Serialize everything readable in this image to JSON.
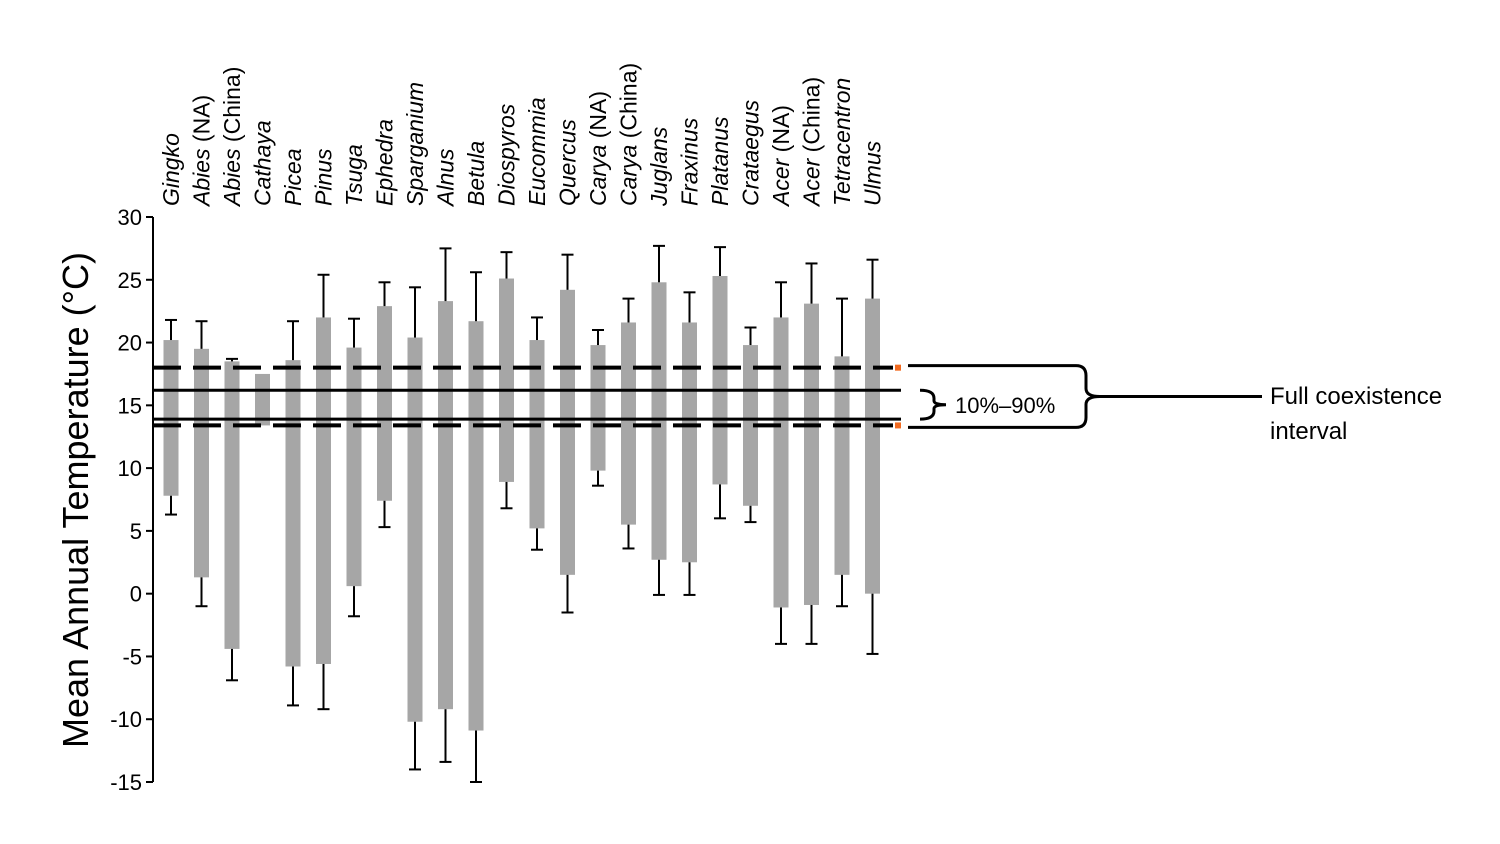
{
  "chart_data": {
    "type": "bar",
    "ylabel": "Mean Annual Temperature (°C)",
    "xlabel": "",
    "ylim": [
      -15,
      30
    ],
    "yticks": [
      30,
      25,
      20,
      15,
      10,
      5,
      0,
      -5,
      -10,
      -15
    ],
    "grid": false,
    "categories": [
      {
        "genus": "Gingko",
        "region": ""
      },
      {
        "genus": "Abies",
        "region": " (NA)"
      },
      {
        "genus": "Abies",
        "region": " (China)"
      },
      {
        "genus": "Cathaya",
        "region": ""
      },
      {
        "genus": "Picea",
        "region": ""
      },
      {
        "genus": "Pinus",
        "region": ""
      },
      {
        "genus": "Tsuga",
        "region": ""
      },
      {
        "genus": "Ephedra",
        "region": ""
      },
      {
        "genus": "Sparganium",
        "region": ""
      },
      {
        "genus": "Alnus",
        "region": ""
      },
      {
        "genus": "Betula",
        "region": ""
      },
      {
        "genus": "Diospyros",
        "region": ""
      },
      {
        "genus": "Eucommia",
        "region": ""
      },
      {
        "genus": "Quercus",
        "region": ""
      },
      {
        "genus": "Carya",
        "region": " (NA)"
      },
      {
        "genus": "Carya",
        "region": " (China)"
      },
      {
        "genus": "Juglans",
        "region": ""
      },
      {
        "genus": "Fraxinus",
        "region": ""
      },
      {
        "genus": "Platanus",
        "region": ""
      },
      {
        "genus": "Crataegus",
        "region": ""
      },
      {
        "genus": "Acer",
        "region": " (NA)"
      },
      {
        "genus": "Acer",
        "region": " (China)"
      },
      {
        "genus": "Tetracentron",
        "region": ""
      },
      {
        "genus": "Ulmus",
        "region": ""
      }
    ],
    "bar_low": [
      7.8,
      1.3,
      -4.4,
      13.4,
      -5.8,
      -5.6,
      0.6,
      7.4,
      -10.2,
      -9.2,
      -10.9,
      8.9,
      5.2,
      1.5,
      9.8,
      5.5,
      2.7,
      2.5,
      8.7,
      7.0,
      -1.1,
      -0.9,
      1.5,
      0.0
    ],
    "bar_high": [
      20.2,
      19.5,
      18.5,
      17.5,
      18.6,
      22.0,
      19.6,
      22.9,
      20.4,
      23.3,
      21.7,
      25.1,
      20.2,
      24.2,
      19.8,
      21.6,
      24.8,
      21.6,
      25.3,
      19.8,
      22.0,
      23.1,
      18.9,
      23.5
    ],
    "whisker_low": [
      6.3,
      -1.0,
      -6.9,
      null,
      -8.9,
      -9.2,
      -1.8,
      5.3,
      -14.0,
      -13.4,
      -15.0,
      6.8,
      3.5,
      -1.5,
      8.6,
      3.6,
      -0.1,
      -0.1,
      6.0,
      5.7,
      -4.0,
      -4.0,
      -1.0,
      -4.8
    ],
    "whisker_high": [
      21.8,
      21.7,
      18.7,
      null,
      21.7,
      25.4,
      21.9,
      24.8,
      24.4,
      27.5,
      25.6,
      27.2,
      22.0,
      27.0,
      21.0,
      23.5,
      27.7,
      24.0,
      27.6,
      21.2,
      24.8,
      26.3,
      23.5,
      26.6
    ],
    "full_coexistence_interval": [
      13.4,
      18.0
    ],
    "percentile_interval": [
      13.9,
      16.2
    ],
    "colors": {
      "bar": "#a6a6a6",
      "whisker": "#000000",
      "axis": "#000000",
      "marker": "#f26b21"
    }
  },
  "annotations": {
    "inner_label": "10%–90%",
    "outer_label_line1": "Full coexistence",
    "outer_label_line2": "interval"
  }
}
